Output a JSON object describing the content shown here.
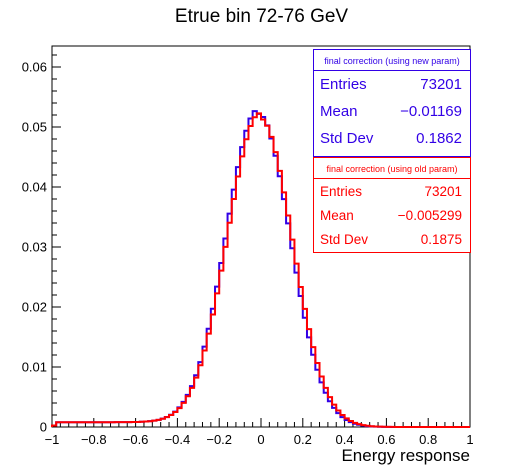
{
  "chart_data": {
    "type": "histogram",
    "title": "Etrue bin 72-76 GeV",
    "xlabel": "Energy response",
    "ylabel": "",
    "xlim": [
      -1,
      1
    ],
    "ylim": [
      0,
      0.0635
    ],
    "x_ticks": [
      -1,
      -0.8,
      -0.6,
      -0.4,
      -0.2,
      0,
      0.2,
      0.4,
      0.6,
      0.8,
      1
    ],
    "x_tick_labels": [
      "−1",
      "−0.8",
      "−0.6",
      "−0.4",
      "−0.2",
      "0",
      "0.2",
      "0.4",
      "0.6",
      "0.8",
      "1"
    ],
    "y_ticks": [
      0,
      0.01,
      0.02,
      0.03,
      0.04,
      0.05,
      0.06
    ],
    "y_tick_labels": [
      "0",
      "0.01",
      "0.02",
      "0.03",
      "0.04",
      "0.05",
      "0.06"
    ],
    "grid": false,
    "series": [
      {
        "name": "final correction (using new param)",
        "color": "#3200e6",
        "entries": "73201",
        "mean": "−0.01169",
        "std_dev": "0.1862",
        "gaussian_approx": {
          "mu": -0.012,
          "sigma": 0.153,
          "peak": 0.0522,
          "tail_level": 0.0008
        }
      },
      {
        "name": "final correction (using old param)",
        "color": "#ff0000",
        "entries": "73201",
        "mean": "−0.005299",
        "std_dev": "0.1875",
        "gaussian_approx": {
          "mu": -0.005,
          "sigma": 0.155,
          "peak": 0.0515,
          "tail_level": 0.0008
        }
      }
    ]
  },
  "stats": {
    "new": {
      "header": "final correction (using new param)",
      "entries_label": "Entries",
      "entries": "73201",
      "mean_label": "Mean",
      "mean": "−0.01169",
      "std_label": "Std Dev",
      "std": "0.1862"
    },
    "old": {
      "header": "final correction (using old param)",
      "entries_label": "Entries",
      "entries": "73201",
      "mean_label": "Mean",
      "mean": "−0.005299",
      "std_label": "Std Dev",
      "std": "0.1875"
    }
  }
}
